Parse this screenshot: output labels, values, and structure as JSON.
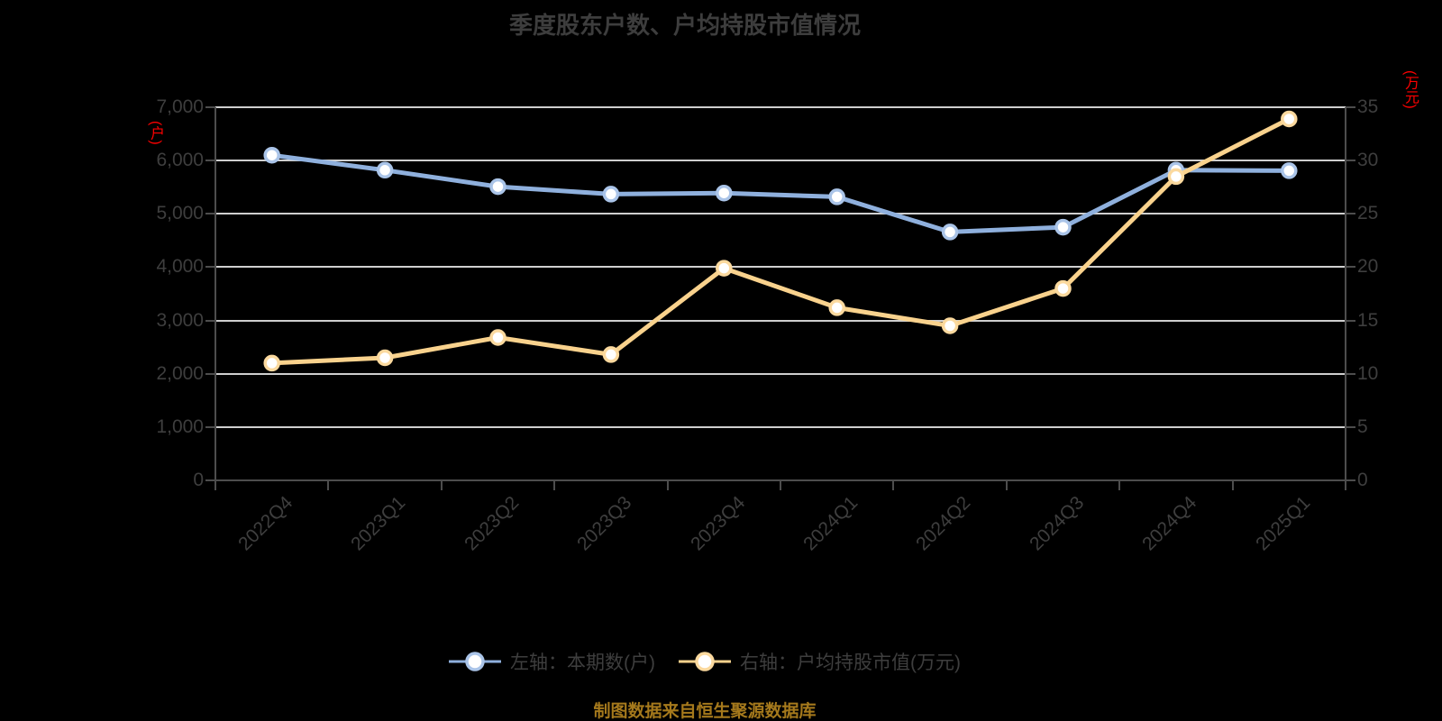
{
  "chart_data": {
    "type": "line",
    "title": "季度股东户数、户均持股市值情况",
    "categories": [
      "2022Q4",
      "2023Q1",
      "2023Q2",
      "2023Q3",
      "2023Q4",
      "2024Q1",
      "2024Q2",
      "2024Q3",
      "2024Q4",
      "2025Q1"
    ],
    "series": [
      {
        "name": "左轴：本期数(户)",
        "axis": "left",
        "values": [
          6100,
          5820,
          5510,
          5370,
          5390,
          5320,
          4660,
          4750,
          5820,
          5810
        ],
        "line_color": "#8fb0dd",
        "marker_ring_color": "#aac4e8",
        "marker_fill": "#ffffff"
      },
      {
        "name": "右轴：户均持股市值(万元)",
        "axis": "right",
        "values": [
          11.0,
          11.5,
          13.4,
          11.8,
          19.9,
          16.2,
          14.5,
          18.0,
          28.5,
          33.9
        ],
        "line_color": "#f9d28d",
        "marker_ring_color": "#fbd99e",
        "marker_fill": "#ffffff"
      }
    ],
    "left_axis": {
      "unit_label": "(户)",
      "unit_color": "#ff0000",
      "min": 0,
      "max": 7000,
      "step": 1000,
      "tick_labels": [
        "0",
        "1,000",
        "2,000",
        "3,000",
        "4,000",
        "5,000",
        "6,000",
        "7,000"
      ]
    },
    "right_axis": {
      "unit_label": "(万元)",
      "unit_color": "#ff0000",
      "min": 0,
      "max": 35,
      "step": 5,
      "tick_labels": [
        "0",
        "5",
        "10",
        "15",
        "20",
        "25",
        "30",
        "35"
      ]
    },
    "grid": true,
    "legend_position": "bottom"
  },
  "source_note": "制图数据来自恒生聚源数据库",
  "colors": {
    "background": "#000000",
    "title_text": "#3d3d3d",
    "tick_text": "#3e3e3e",
    "gridline": "#cfcfcf",
    "axis_line": "#4d4d4d",
    "unit_label": "#ff0000",
    "source_note": "#a5791c"
  }
}
